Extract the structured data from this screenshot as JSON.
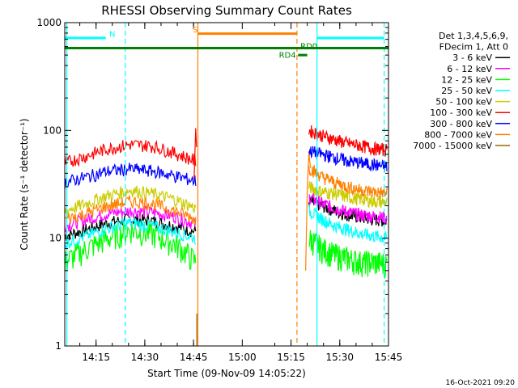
{
  "chart_data": {
    "type": "line",
    "title": "RHESSI Observing Summary Count Rates",
    "xlabel": "Start Time (09-Nov-09 14:05:22)",
    "ylabel": "Count Rate (s⁻¹ detector⁻¹)",
    "y_scale": "log",
    "ylim": [
      1,
      1000
    ],
    "xlim": [
      "14:05:22",
      "15:45:00"
    ],
    "x_ticks": [
      "14:15",
      "14:30",
      "14:45",
      "15:00",
      "15:15",
      "15:30",
      "15:45"
    ],
    "y_ticks": [
      "1",
      "10",
      "100",
      "1000"
    ],
    "legend": {
      "placement": "top-right",
      "header": [
        "Det 1,3,4,5,6,9,",
        "FDecim 1, Att 0"
      ]
    },
    "data_gap": [
      "14:46:30",
      "15:20:00"
    ],
    "series": [
      {
        "name": "3 - 6 keV",
        "color": "#000000",
        "pre": [
          10.5,
          12,
          14,
          15,
          14.5,
          13,
          11.5
        ],
        "post": [
          22,
          20,
          18,
          16.5,
          15.5,
          15,
          14.5
        ]
      },
      {
        "name": "6 - 12 keV",
        "color": "#ff00ff",
        "pre": [
          13,
          15,
          17,
          18,
          17.5,
          16,
          13.5
        ],
        "post": [
          24,
          21,
          19,
          17.5,
          16.5,
          16,
          15.5
        ]
      },
      {
        "name": "12 - 25 keV",
        "color": "#00ff00",
        "pre": [
          6,
          8,
          10,
          12,
          11,
          9,
          6
        ],
        "post": [
          10,
          8,
          7,
          6.5,
          6,
          6,
          5.8
        ]
      },
      {
        "name": "25 - 50 keV",
        "color": "#00ffff",
        "pre": [
          9,
          10.5,
          12.5,
          14,
          13,
          11.5,
          10
        ],
        "post": [
          18,
          15,
          13,
          12,
          11,
          10.5,
          10
        ]
      },
      {
        "name": "50 - 100 keV",
        "color": "#cccc00",
        "pre": [
          18,
          21,
          25,
          28,
          26,
          23,
          19
        ],
        "post": [
          30,
          27,
          26,
          24,
          23,
          22,
          21.5
        ]
      },
      {
        "name": "100 - 300 keV",
        "color": "#ff0000",
        "pre": [
          50,
          58,
          68,
          74,
          72,
          62,
          52
        ],
        "post": [
          100,
          90,
          82,
          76,
          72,
          68,
          66
        ]
      },
      {
        "name": "300 - 800 keV",
        "color": "#0000ff",
        "pre": [
          33,
          37,
          42,
          44,
          42,
          38,
          34
        ],
        "post": [
          65,
          60,
          56,
          52,
          50,
          48,
          46
        ]
      },
      {
        "name": "800 - 7000 keV",
        "color": "#ff8000",
        "pre": [
          15,
          17,
          20,
          22,
          21,
          18,
          15
        ],
        "post": [
          45,
          37,
          33,
          30,
          28,
          27,
          26
        ]
      },
      {
        "name": "7000 - 15000 keV",
        "color": "#996600",
        "pre": [],
        "post": []
      }
    ],
    "annotations": [
      {
        "text": "N",
        "color": "#00ffff",
        "kind": "night"
      },
      {
        "text": "S",
        "color": "#ff8000",
        "kind": "SAA"
      },
      {
        "text": "RD4",
        "color": "#008000",
        "kind": "data-rate"
      },
      {
        "text": "RD0",
        "color": "#008000",
        "kind": "data-rate"
      }
    ],
    "timestamp": "16-Oct-2021 09:20"
  }
}
